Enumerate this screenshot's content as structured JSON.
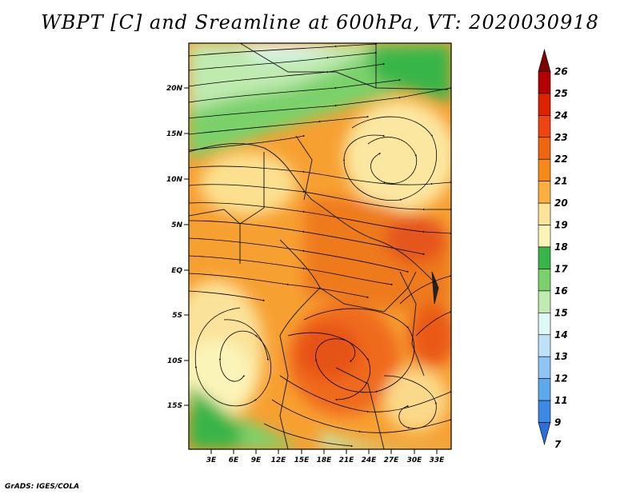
{
  "title": "WBPT [C] and Sreamline at 600hPa, VT: 2020030918",
  "credit": "GrADS: IGES/COLA",
  "map": {
    "lat_labels": [
      "20N",
      "15N",
      "10N",
      "5N",
      "EQ",
      "5S",
      "10S",
      "15S"
    ],
    "lon_labels": [
      "3E",
      "6E",
      "9E",
      "12E",
      "15E",
      "18E",
      "21E",
      "24E",
      "27E",
      "30E",
      "33E"
    ]
  },
  "colorbar": {
    "labels": [
      "26",
      "25",
      "24",
      "23",
      "22",
      "21",
      "20",
      "19",
      "18",
      "17",
      "16",
      "15",
      "14",
      "13",
      "12",
      "11",
      "9",
      "7"
    ],
    "colors": [
      "#7f0000",
      "#b40000",
      "#dd2200",
      "#ee4411",
      "#ee6611",
      "#f58a18",
      "#fbb040",
      "#fde29a",
      "#fbf4b8",
      "#39b54a",
      "#7ad16b",
      "#bfeab0",
      "#dff7f7",
      "#bfe2f7",
      "#8ec5f2",
      "#5ea8ec",
      "#3d8ae6",
      "#2c6fd9"
    ]
  }
}
